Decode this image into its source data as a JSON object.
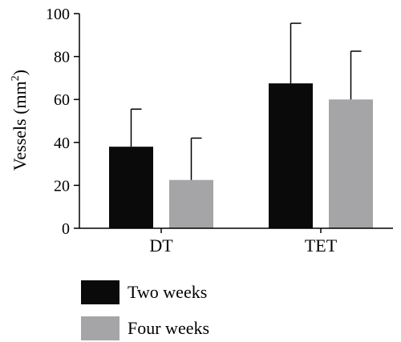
{
  "chart_data": {
    "type": "bar",
    "categories": [
      "DT",
      "TET"
    ],
    "series": [
      {
        "name": "Two weeks",
        "values": [
          38,
          67.5
        ],
        "errors": [
          17.5,
          28
        ],
        "color": "#0a0a0a"
      },
      {
        "name": "Four weeks",
        "values": [
          22.5,
          60
        ],
        "errors": [
          19.5,
          22.5
        ],
        "color": "#a5a5a7"
      }
    ],
    "ylabel_main": "Vessels (mm",
    "ylabel_sup": "2",
    "ylabel_end": ")",
    "ylim": [
      0,
      100
    ],
    "yticks": [
      "0",
      "20",
      "40",
      "60",
      "80",
      "100"
    ],
    "error_bars": "upper",
    "legend_position": "bottom"
  }
}
